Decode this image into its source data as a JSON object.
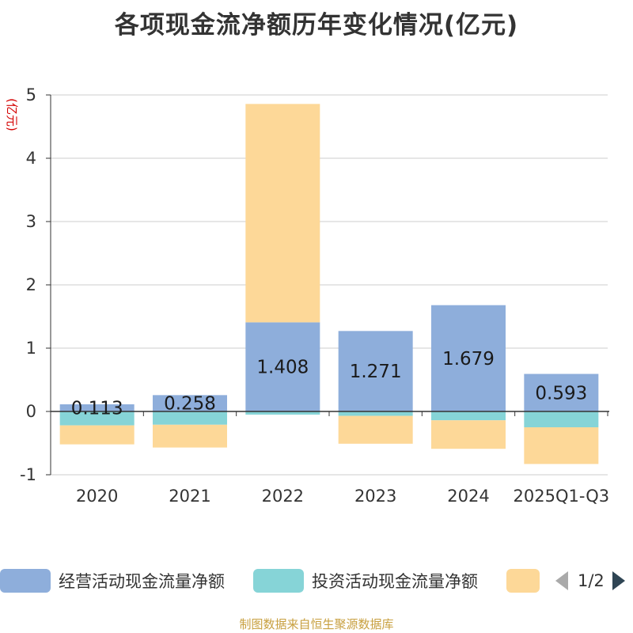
{
  "chart_data": {
    "type": "bar",
    "stacked": true,
    "title": "各项现金流净额历年变化情况(亿元)",
    "ylabel": "(亿元)",
    "xlabel": "",
    "ylim": [
      -1,
      5
    ],
    "yticks": [
      -1,
      0,
      1,
      2,
      3,
      4,
      5
    ],
    "categories": [
      "2020",
      "2021",
      "2022",
      "2023",
      "2024",
      "2025Q1-Q3"
    ],
    "series": [
      {
        "name": "经营活动现金流量净额",
        "color": "#8eaedb",
        "values": [
          0.113,
          0.258,
          1.408,
          1.271,
          1.679,
          0.593
        ],
        "show_labels": true
      },
      {
        "name": "投资活动现金流量净额",
        "color": "#86d4d7",
        "values": [
          -0.22,
          -0.21,
          -0.05,
          -0.07,
          -0.14,
          -0.25
        ],
        "show_labels": false
      },
      {
        "name": "",
        "color": "#fdd898",
        "values": [
          -0.3,
          -0.36,
          3.45,
          -0.44,
          -0.45,
          -0.58
        ],
        "show_labels": false
      }
    ],
    "legend_position": "bottom"
  },
  "legend": {
    "page_indicator": "1/2"
  },
  "source_note": "制图数据来自恒生聚源数据库",
  "colors": {
    "axis": "#333333",
    "grid": "#cccccc",
    "unit": "#d40000",
    "source": "#c8a040",
    "pager_prev": "#aaaaaa",
    "pager_next": "#2f4554"
  }
}
